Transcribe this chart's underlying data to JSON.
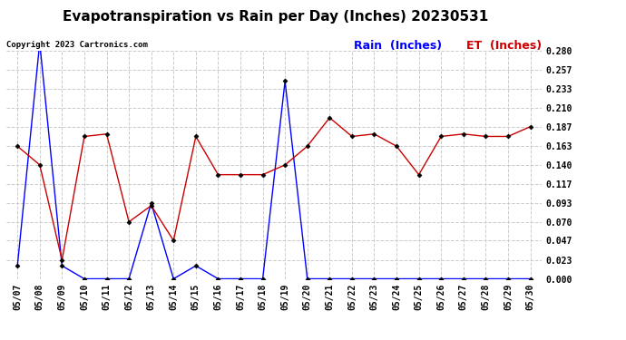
{
  "title": "Evapotranspiration vs Rain per Day (Inches) 20230531",
  "copyright": "Copyright 2023 Cartronics.com",
  "legend_rain": "Rain  (Inches)",
  "legend_et": "ET  (Inches)",
  "dates": [
    "05/07",
    "05/08",
    "05/09",
    "05/10",
    "05/11",
    "05/12",
    "05/13",
    "05/14",
    "05/15",
    "05/16",
    "05/17",
    "05/18",
    "05/19",
    "05/20",
    "05/21",
    "05/22",
    "05/23",
    "05/24",
    "05/25",
    "05/26",
    "05/27",
    "05/28",
    "05/29",
    "05/30"
  ],
  "rain": [
    0.016,
    0.29,
    0.016,
    0.0,
    0.0,
    0.0,
    0.093,
    0.0,
    0.016,
    0.0,
    0.0,
    0.0,
    0.243,
    0.0,
    0.0,
    0.0,
    0.0,
    0.0,
    0.0,
    0.0,
    0.0,
    0.0,
    0.0,
    0.0
  ],
  "et": [
    0.163,
    0.14,
    0.023,
    0.175,
    0.178,
    0.07,
    0.09,
    0.047,
    0.175,
    0.128,
    0.128,
    0.128,
    0.14,
    0.163,
    0.198,
    0.175,
    0.178,
    0.163,
    0.128,
    0.175,
    0.178,
    0.175,
    0.175,
    0.187
  ],
  "rain_color": "#0000ff",
  "et_color": "#cc0000",
  "marker": "D",
  "marker_size": 2.5,
  "linewidth": 1.0,
  "ylim_min": 0.0,
  "ylim_max": 0.28,
  "yticks": [
    0.0,
    0.023,
    0.047,
    0.07,
    0.093,
    0.117,
    0.14,
    0.163,
    0.187,
    0.21,
    0.233,
    0.257,
    0.28
  ],
  "title_fontsize": 11,
  "tick_fontsize": 7,
  "copyright_fontsize": 6.5,
  "legend_fontsize": 9,
  "bg_color": "#ffffff",
  "grid_color": "#cccccc"
}
